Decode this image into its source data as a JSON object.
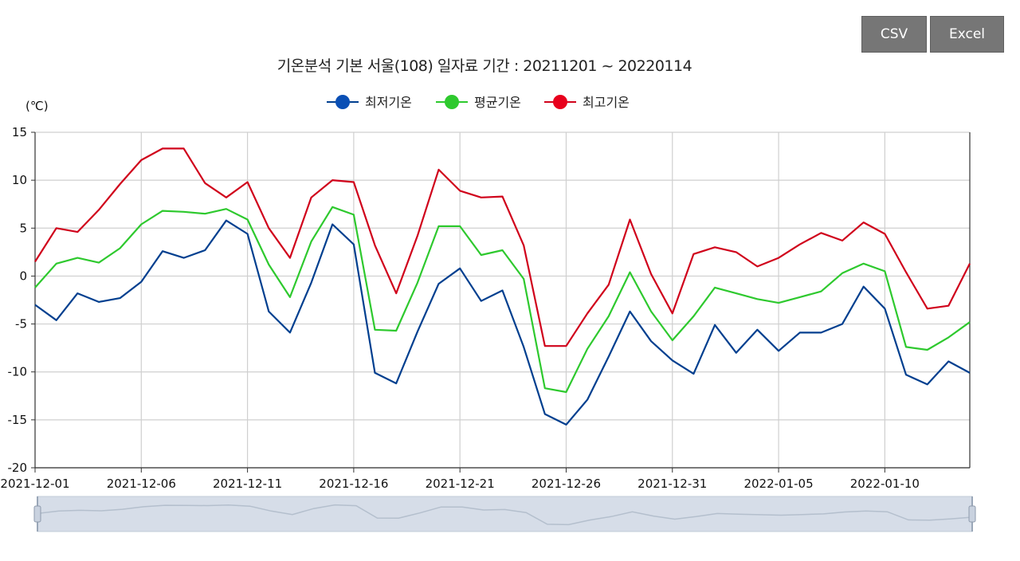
{
  "toolbar": {
    "csv_label": "CSV",
    "excel_label": "Excel"
  },
  "chart_data": {
    "type": "line",
    "title": "기온분석 기본 서울(108) 일자료 기간 : 20211201 ~ 20220114",
    "ylabel": "(℃)",
    "xlabel": "",
    "ylim": [
      -20,
      15
    ],
    "yticks": [
      15,
      10,
      5,
      0,
      -5,
      -10,
      -15,
      -20
    ],
    "grid": true,
    "legend_position": "top-center",
    "x": [
      "2021-12-01",
      "2021-12-02",
      "2021-12-03",
      "2021-12-04",
      "2021-12-05",
      "2021-12-06",
      "2021-12-07",
      "2021-12-08",
      "2021-12-09",
      "2021-12-10",
      "2021-12-11",
      "2021-12-12",
      "2021-12-13",
      "2021-12-14",
      "2021-12-15",
      "2021-12-16",
      "2021-12-17",
      "2021-12-18",
      "2021-12-19",
      "2021-12-20",
      "2021-12-21",
      "2021-12-22",
      "2021-12-23",
      "2021-12-24",
      "2021-12-25",
      "2021-12-26",
      "2021-12-27",
      "2021-12-28",
      "2021-12-29",
      "2021-12-30",
      "2021-12-31",
      "2022-01-01",
      "2022-01-02",
      "2022-01-03",
      "2022-01-04",
      "2022-01-05",
      "2022-01-06",
      "2022-01-07",
      "2022-01-08",
      "2022-01-09",
      "2022-01-10",
      "2022-01-11",
      "2022-01-12",
      "2022-01-13",
      "2022-01-14"
    ],
    "xtick_labels": [
      "2021-12-01",
      "2021-12-06",
      "2021-12-11",
      "2021-12-16",
      "2021-12-21",
      "2021-12-26",
      "2021-12-31",
      "2022-01-05",
      "2022-01-10"
    ],
    "series": [
      {
        "name": "최저기온",
        "color": "#003f8f",
        "marker_color": "#0a4fb5",
        "values": [
          -3.0,
          -4.6,
          -1.8,
          -2.7,
          -2.3,
          -0.6,
          2.6,
          1.9,
          2.7,
          5.8,
          4.4,
          -3.7,
          -5.9,
          -0.7,
          5.4,
          3.3,
          -10.1,
          -11.2,
          -5.8,
          -0.8,
          0.8,
          -2.6,
          -1.5,
          -7.4,
          -14.4,
          -15.5,
          -12.9,
          -8.4,
          -3.7,
          -6.8,
          -8.8,
          -10.2,
          -5.1,
          -8.0,
          -5.6,
          -7.8,
          -5.9,
          -5.9,
          -5.0,
          -1.1,
          -3.4,
          -10.3,
          -11.3,
          -8.9,
          -10.1
        ]
      },
      {
        "name": "평균기온",
        "color": "#2ec92e",
        "marker_color": "#2ec92e",
        "values": [
          -1.2,
          1.3,
          1.9,
          1.4,
          2.9,
          5.4,
          6.8,
          6.7,
          6.5,
          7.0,
          5.9,
          1.2,
          -2.2,
          3.6,
          7.2,
          6.4,
          -5.6,
          -5.7,
          -0.7,
          5.2,
          5.2,
          2.2,
          2.7,
          -0.3,
          -11.7,
          -12.1,
          -7.6,
          -4.2,
          0.4,
          -3.7,
          -6.7,
          -4.2,
          -1.2,
          -1.8,
          -2.4,
          -2.8,
          -2.2,
          -1.6,
          0.3,
          1.3,
          0.5,
          -7.4,
          -7.7,
          -6.4,
          -4.8
        ]
      },
      {
        "name": "최고기온",
        "color": "#d0021b",
        "marker_color": "#e8001c",
        "values": [
          1.5,
          5.0,
          4.6,
          6.9,
          9.6,
          12.1,
          13.3,
          13.3,
          9.7,
          8.2,
          9.8,
          5.0,
          1.9,
          8.2,
          10.0,
          9.8,
          3.2,
          -1.8,
          4.2,
          11.1,
          8.9,
          8.2,
          8.3,
          3.2,
          -7.3,
          -7.3,
          -3.9,
          -0.9,
          5.9,
          0.2,
          -3.9,
          2.3,
          3.0,
          2.5,
          1.0,
          1.9,
          3.3,
          4.5,
          3.7,
          5.6,
          4.4,
          0.4,
          -3.4,
          -3.1,
          1.3
        ]
      }
    ]
  }
}
